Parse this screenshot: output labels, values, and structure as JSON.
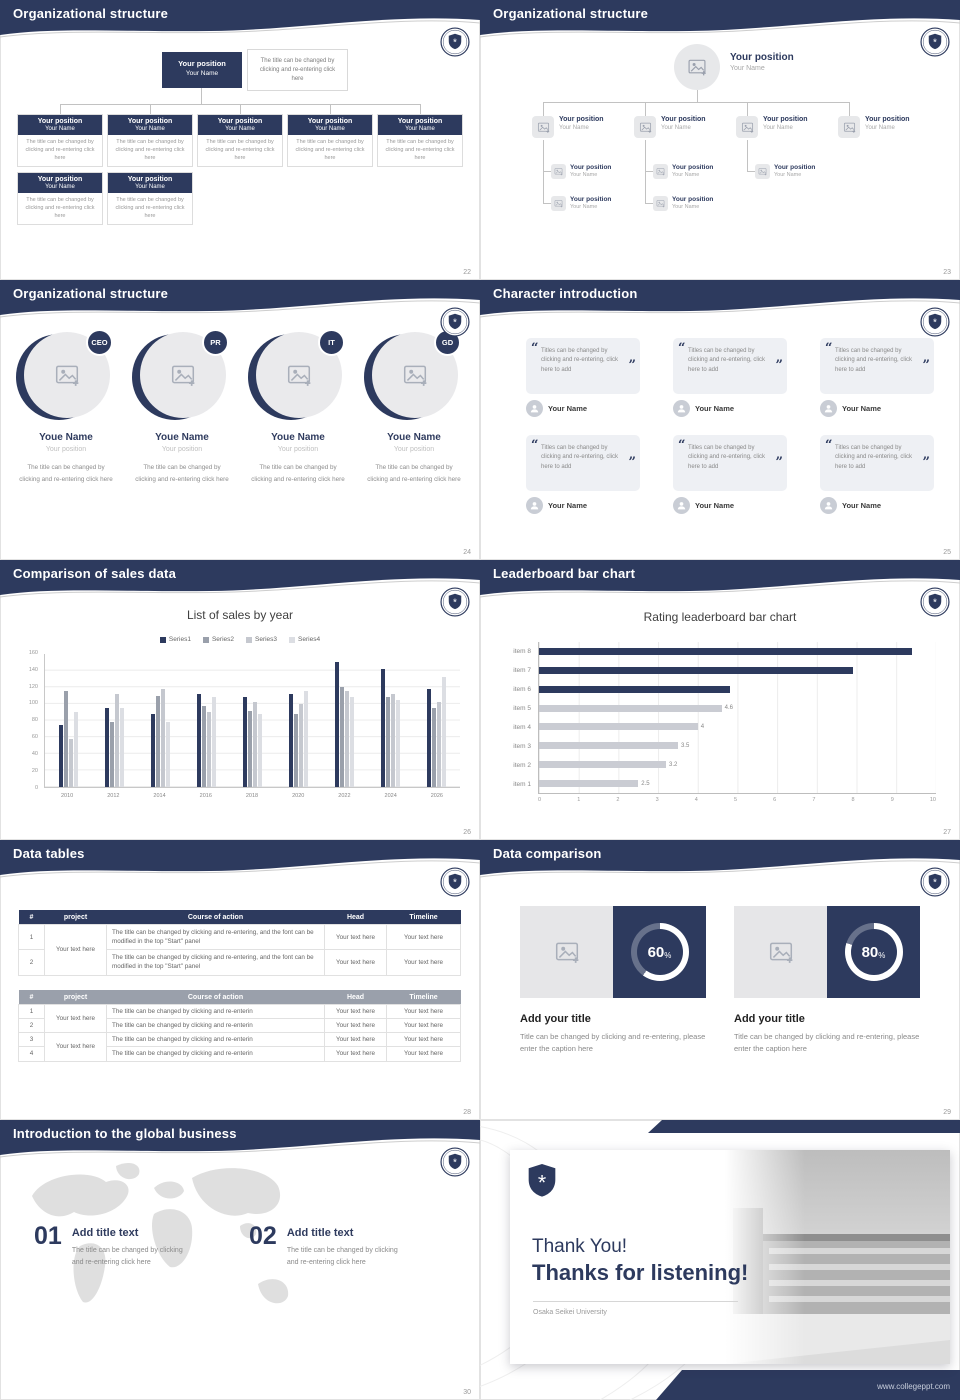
{
  "slides": {
    "s22": {
      "title": "Organizational structure",
      "page": "22",
      "root": {
        "position": "Your position",
        "name": "Your Name"
      },
      "root_caption": "The title can be changed by clicking and re-entering click here",
      "boxes_row1": [
        {
          "position": "Your position",
          "name": "Your Name",
          "caption": "The title can be changed by clicking and re-entering click here"
        },
        {
          "position": "Your position",
          "name": "Your Name",
          "caption": "The title can be changed by clicking and re-entering click here"
        },
        {
          "position": "Your position",
          "name": "Your Name",
          "caption": "The title can be changed by clicking and re-entering click here"
        },
        {
          "position": "Your position",
          "name": "Your Name",
          "caption": "The title can be changed by clicking and re-entering click here"
        },
        {
          "position": "Your position",
          "name": "Your Name",
          "caption": "The title can be changed by clicking and re-entering click here"
        }
      ],
      "boxes_row2": [
        {
          "position": "Your position",
          "name": "Your Name",
          "caption": "The title can be changed by clicking and re-entering click here"
        },
        {
          "position": "Your position",
          "name": "Your Name",
          "caption": "The title can be changed by clicking and re-entering click here"
        }
      ]
    },
    "s23": {
      "title": "Organizational structure",
      "page": "23",
      "root": {
        "position": "Your position",
        "name": "Your Name"
      },
      "branches": [
        {
          "position": "Your position",
          "name": "Your Name"
        },
        {
          "position": "Your position",
          "name": "Your Name"
        },
        {
          "position": "Your position",
          "name": "Your Name"
        },
        {
          "position": "Your position",
          "name": "Your Name"
        }
      ],
      "leaves_row1": [
        {
          "position": "Your position",
          "name": "Your Name"
        },
        {
          "position": "Your position",
          "name": "Your Name"
        },
        {
          "position": "Your position",
          "name": "Your Name"
        }
      ],
      "leaves_row2": [
        {
          "position": "Your position",
          "name": "Your Name"
        },
        {
          "position": "Your position",
          "name": "Your Name"
        }
      ]
    },
    "s24": {
      "title": "Organizational structure",
      "page": "24",
      "members": [
        {
          "badge": "CEO",
          "name": "Youe Name",
          "position": "Your position",
          "caption": "The title can be changed by clicking and re-entering click here"
        },
        {
          "badge": "PR",
          "name": "Youe Name",
          "position": "Your position",
          "caption": "The title can be changed by clicking and re-entering click here"
        },
        {
          "badge": "IT",
          "name": "Youe Name",
          "position": "Your position",
          "caption": "The title can be changed by clicking and re-entering click here"
        },
        {
          "badge": "GD",
          "name": "Youe Name",
          "position": "Your position",
          "caption": "The title can be changed by clicking and re-entering click here"
        }
      ]
    },
    "s25": {
      "title": "Character introduction",
      "page": "25",
      "quote_open": "“",
      "quote_close": "”",
      "cards": [
        {
          "quote": "Titles can be changed by clicking and re-entering, click here to add",
          "name": "Your Name"
        },
        {
          "quote": "Titles can be changed by clicking and re-entering, click here to add",
          "name": "Your Name"
        },
        {
          "quote": "Titles can be changed by clicking and re-entering, click here to add",
          "name": "Your Name"
        },
        {
          "quote": "Titles can be changed by clicking and re-entering, click here to add",
          "name": "Your Name"
        },
        {
          "quote": "Titles can be changed by clicking and re-entering, click here to add",
          "name": "Your Name"
        },
        {
          "quote": "Titles can be changed by clicking and re-entering, click here to add",
          "name": "Your Name"
        }
      ]
    },
    "s26": {
      "title": "Comparison of sales data",
      "page": "26",
      "chart_data": {
        "type": "bar",
        "title": "List of sales by year",
        "categories": [
          "2010",
          "2012",
          "2014",
          "2016",
          "2018",
          "2020",
          "2022",
          "2024",
          "2026"
        ],
        "series": [
          {
            "name": "Series1",
            "values": [
              75,
              95,
              88,
              112,
              108,
              112,
              150,
              142,
              118
            ]
          },
          {
            "name": "Series2",
            "values": [
              115,
              78,
              110,
              98,
              92,
              88,
              120,
              108,
              95
            ]
          },
          {
            "name": "Series3",
            "values": [
              58,
              112,
              118,
              90,
              102,
              100,
              115,
              112,
              102
            ]
          },
          {
            "name": "Series4",
            "values": [
              90,
              95,
              78,
              108,
              88,
              115,
              108,
              105,
              132
            ]
          }
        ],
        "colors": [
          "#2d3a5e",
          "#9aa0ab",
          "#c5c8cf",
          "#dcdee3"
        ],
        "ylim": [
          0,
          160
        ],
        "yticks": [
          "160",
          "140",
          "120",
          "100",
          "80",
          "60",
          "40",
          "20",
          "0"
        ],
        "grid": true,
        "legend_position": "top"
      }
    },
    "s27": {
      "title": "Leaderboard bar chart",
      "page": "27",
      "chart_data": {
        "type": "bar",
        "orientation": "horizontal",
        "title": "Rating leaderboard bar chart",
        "items": [
          {
            "label": "item 8",
            "value": 9.4,
            "color": "#2d3a5e",
            "value_label": ""
          },
          {
            "label": "item 7",
            "value": 7.9,
            "color": "#2d3a5e",
            "value_label": ""
          },
          {
            "label": "item 6",
            "value": 4.8,
            "color": "#2d3a5e",
            "value_label": ""
          },
          {
            "label": "item 5",
            "value": 4.6,
            "color": "#caccd3",
            "value_label": "4.6"
          },
          {
            "label": "item 4",
            "value": 4,
            "color": "#caccd3",
            "value_label": "4"
          },
          {
            "label": "item 3",
            "value": 3.5,
            "color": "#caccd3",
            "value_label": "3.5"
          },
          {
            "label": "item 2",
            "value": 3.2,
            "color": "#caccd3",
            "value_label": "3.2"
          },
          {
            "label": "item 1",
            "value": 2.5,
            "color": "#caccd3",
            "value_label": "2.5"
          }
        ],
        "xlim": [
          0,
          10
        ],
        "xticks": [
          "0",
          "1",
          "2",
          "3",
          "4",
          "5",
          "6",
          "7",
          "8",
          "9",
          "10"
        ],
        "grid": true
      }
    },
    "s28": {
      "title": "Data tables",
      "page": "28",
      "table1": {
        "headers": [
          "#",
          "project",
          "Course of action",
          "Head",
          "Timeline"
        ],
        "project_text": "Your text here",
        "rows": [
          {
            "num": "1",
            "course": "The title can be changed by clicking and re-entering, and the font can be modified in the top \"Start\" panel",
            "head": "Your text here",
            "timeline": "Your text here"
          },
          {
            "num": "2",
            "course": "The title can be changed by clicking and re-entering, and the font can be modified in the top \"Start\" panel",
            "head": "Your text here",
            "timeline": "Your text here"
          }
        ]
      },
      "table2": {
        "headers": [
          "#",
          "project",
          "Course of action",
          "Head",
          "Timeline"
        ],
        "project_text": "Your text here",
        "rows": [
          {
            "num": "1",
            "course": "The title can be changed by clicking and re-enterin",
            "head": "Your text here",
            "timeline": "Your text here"
          },
          {
            "num": "2",
            "course": "The title can be changed by clicking and re-enterin",
            "head": "Your text here",
            "timeline": "Your text here"
          },
          {
            "num": "3",
            "course": "The title can be changed by clicking and re-enterin",
            "head": "Your text here",
            "timeline": "Your text here"
          },
          {
            "num": "4",
            "course": "The title can be changed by clicking and re-enterin",
            "head": "Your text here",
            "timeline": "Your text here"
          }
        ]
      }
    },
    "s29": {
      "title": "Data comparison",
      "page": "29",
      "panels": [
        {
          "percent": 60,
          "unit": "%",
          "title": "Add your title",
          "caption": "Title can be changed by clicking and re-entering, please enter the caption here"
        },
        {
          "percent": 80,
          "unit": "%",
          "title": "Add your title",
          "caption": "Title can be changed by clicking and re-entering, please enter the caption here"
        }
      ]
    },
    "s30": {
      "title": "Introduction to the global business",
      "page": "30",
      "items": [
        {
          "num": "01",
          "title": "Add title text",
          "body": "The title can be changed by clicking and re-entering click here"
        },
        {
          "num": "02",
          "title": "Add title text",
          "body": "The title can be changed by clicking and re-entering click here"
        }
      ]
    },
    "s31": {
      "greeting": "Thank You!",
      "headline": "Thanks for listening!",
      "university": "Osaka Seikei University",
      "watermark": "www.collegeppt.com"
    }
  }
}
